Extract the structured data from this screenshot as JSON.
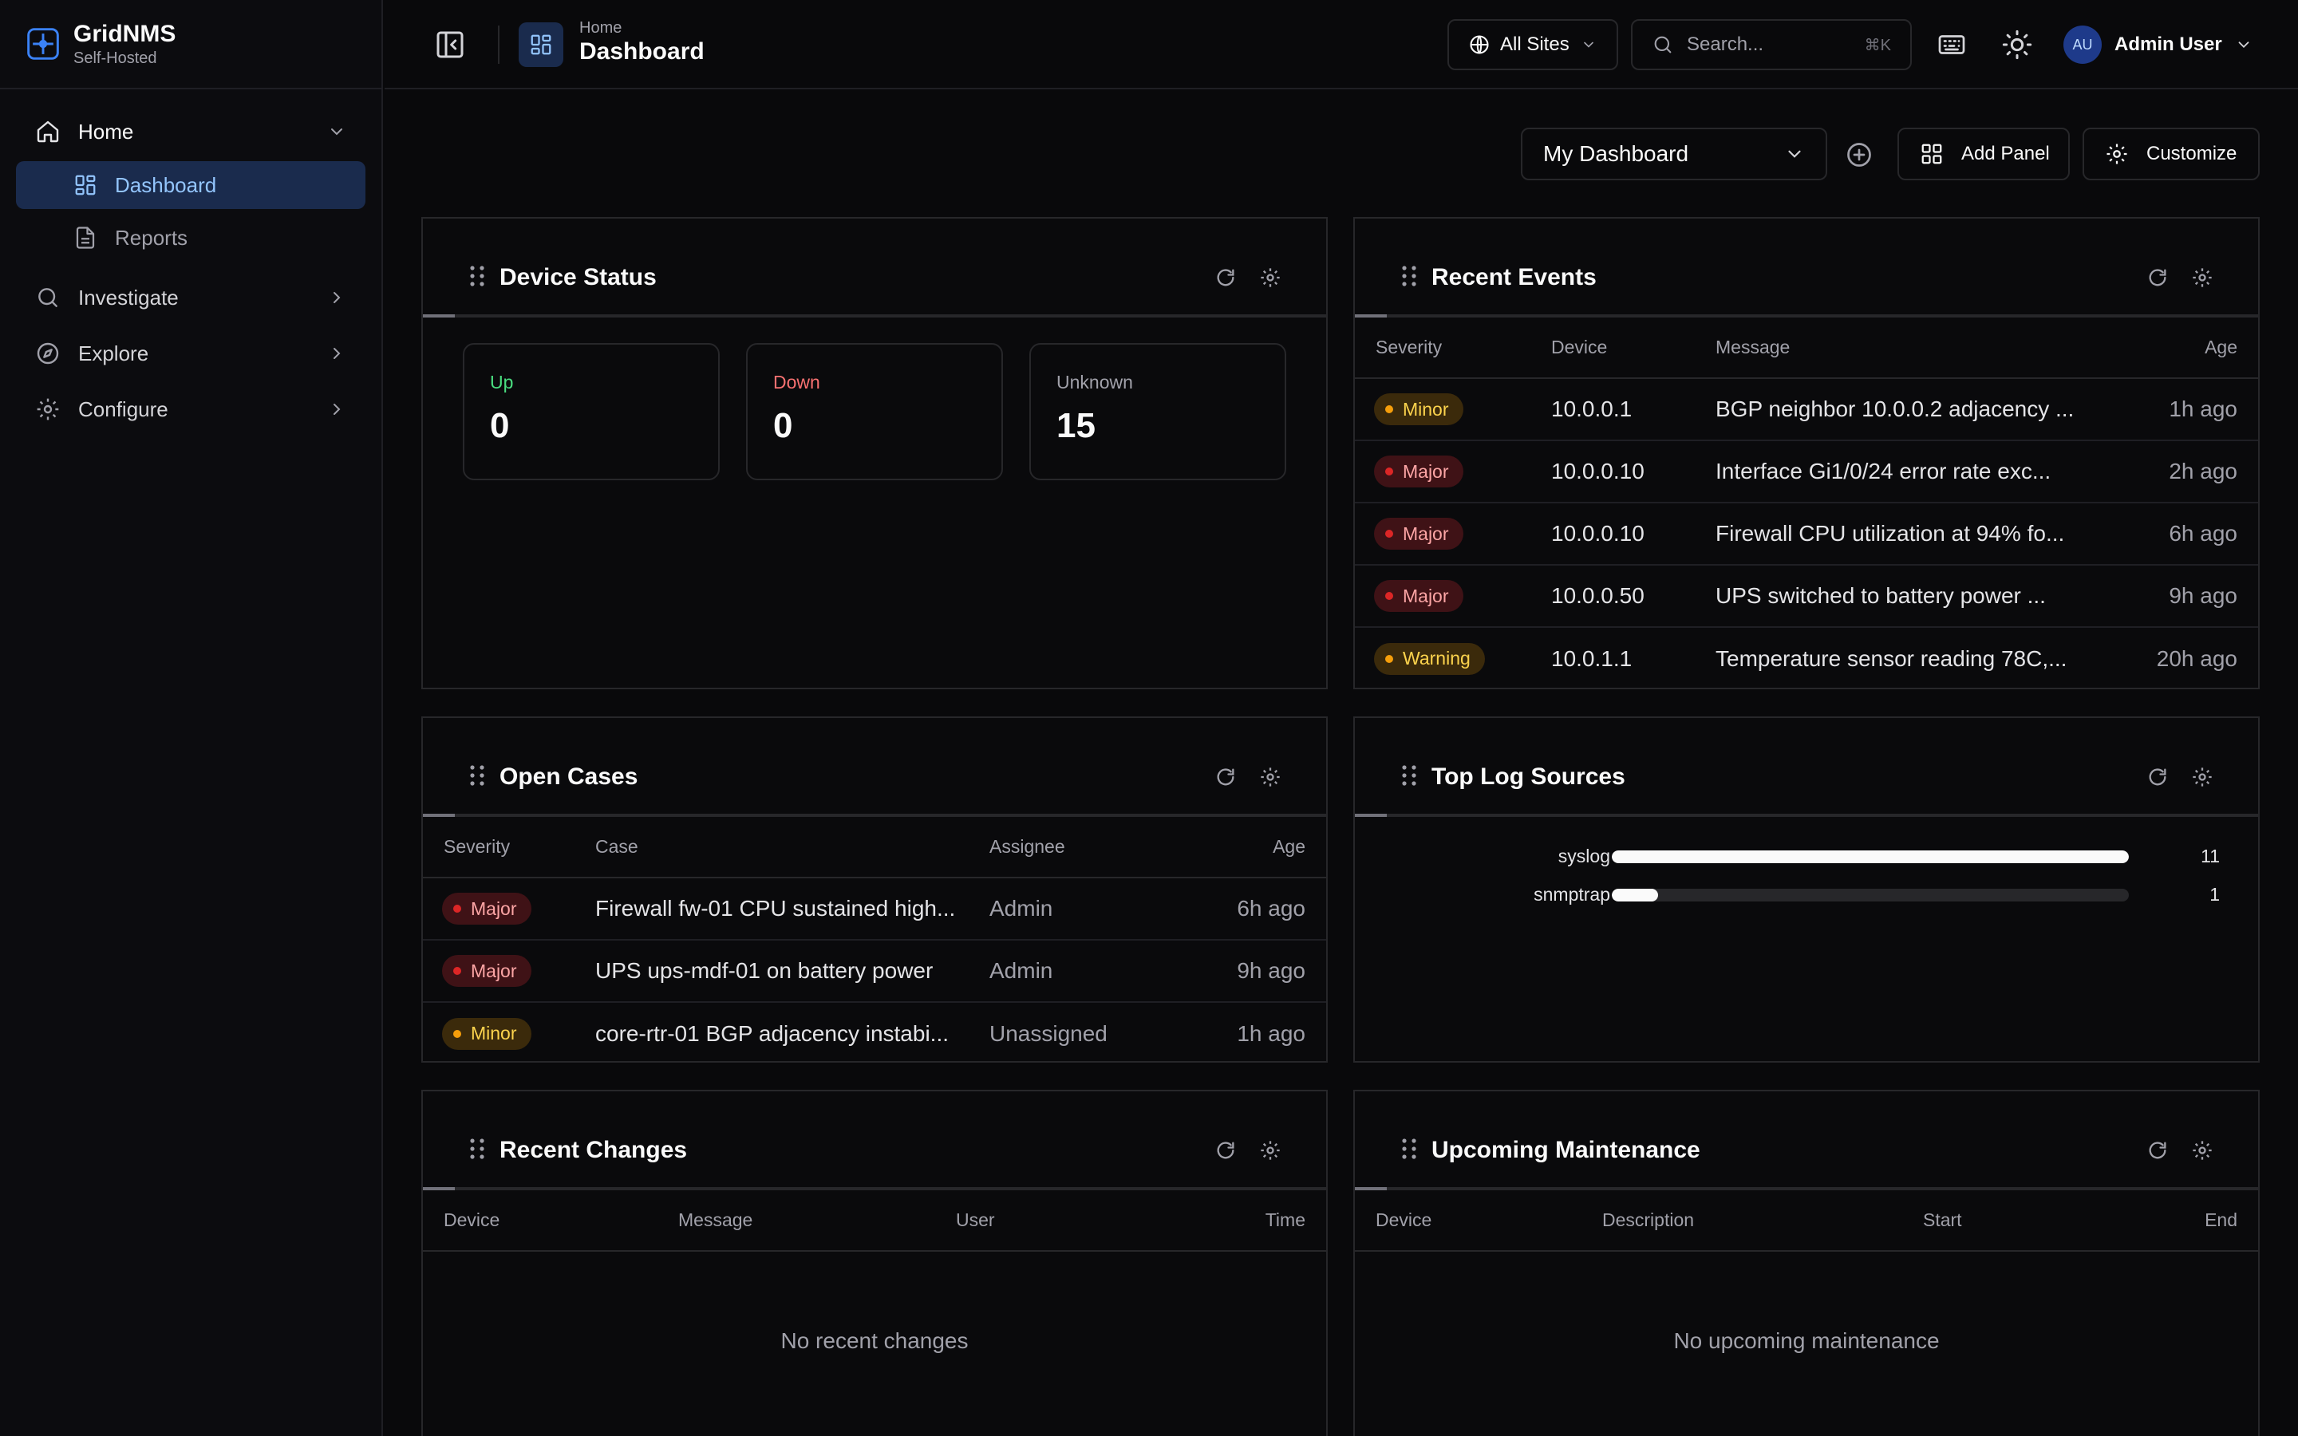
{
  "brand": {
    "name": "GridNMS",
    "subtitle": "Self-Hosted"
  },
  "sidebar": {
    "home_label": "Home",
    "sub_items": [
      {
        "label": "Dashboard",
        "icon": "dashboard-icon",
        "active": true
      },
      {
        "label": "Reports",
        "icon": "document-icon",
        "active": false
      }
    ],
    "items": [
      {
        "label": "Investigate",
        "icon": "search-icon"
      },
      {
        "label": "Explore",
        "icon": "compass-icon"
      },
      {
        "label": "Configure",
        "icon": "gear-icon"
      }
    ]
  },
  "header": {
    "breadcrumb_parent": "Home",
    "page_title": "Dashboard",
    "sites_label": "All Sites",
    "search_placeholder": "Search...",
    "search_shortcut": "⌘K",
    "user_initials": "AU",
    "user_name": "Admin User"
  },
  "toolbar": {
    "dashboard_select": "My Dashboard",
    "add_panel_label": "Add Panel",
    "customize_label": "Customize"
  },
  "panels": {
    "device_status": {
      "title": "Device Status",
      "stats": [
        {
          "label": "Up",
          "value": "0",
          "color": "#4ade80"
        },
        {
          "label": "Down",
          "value": "0",
          "color": "#f87171"
        },
        {
          "label": "Unknown",
          "value": "15",
          "color": "#a1a1aa"
        }
      ]
    },
    "recent_events": {
      "title": "Recent Events",
      "columns": [
        "Severity",
        "Device",
        "Message",
        "Age"
      ],
      "rows": [
        {
          "severity": "Minor",
          "device": "10.0.0.1",
          "message": "BGP neighbor 10.0.0.2 adjacency ...",
          "age": "1h ago"
        },
        {
          "severity": "Major",
          "device": "10.0.0.10",
          "message": "Interface Gi1/0/24 error rate exc...",
          "age": "2h ago"
        },
        {
          "severity": "Major",
          "device": "10.0.0.10",
          "message": "Firewall CPU utilization at 94% fo...",
          "age": "6h ago"
        },
        {
          "severity": "Major",
          "device": "10.0.0.50",
          "message": "UPS switched to battery power ...",
          "age": "9h ago"
        },
        {
          "severity": "Warning",
          "device": "10.0.1.1",
          "message": "Temperature sensor reading 78C,...",
          "age": "20h ago"
        }
      ]
    },
    "open_cases": {
      "title": "Open Cases",
      "columns": [
        "Severity",
        "Case",
        "Assignee",
        "Age"
      ],
      "rows": [
        {
          "severity": "Major",
          "case": "Firewall fw-01 CPU sustained high...",
          "assignee": "Admin",
          "age": "6h ago"
        },
        {
          "severity": "Major",
          "case": "UPS ups-mdf-01 on battery power",
          "assignee": "Admin",
          "age": "9h ago"
        },
        {
          "severity": "Minor",
          "case": "core-rtr-01 BGP adjacency instabi...",
          "assignee": "Unassigned",
          "age": "1h ago"
        }
      ]
    },
    "top_log_sources": {
      "title": "Top Log Sources",
      "sources": [
        {
          "name": "syslog",
          "count": "11",
          "fraction": 1.0
        },
        {
          "name": "snmptrap",
          "count": "1",
          "fraction": 0.09
        }
      ]
    },
    "recent_changes": {
      "title": "Recent Changes",
      "columns": [
        "Device",
        "Message",
        "User",
        "Time"
      ],
      "empty_text": "No recent changes"
    },
    "upcoming_maintenance": {
      "title": "Upcoming Maintenance",
      "columns": [
        "Device",
        "Description",
        "Start",
        "End"
      ],
      "empty_text": "No upcoming maintenance"
    }
  },
  "colors": {
    "accent": "#93c5fd",
    "active_bg": "#1a2b4d",
    "major": "#dc2626",
    "minor": "#f59e0b"
  }
}
